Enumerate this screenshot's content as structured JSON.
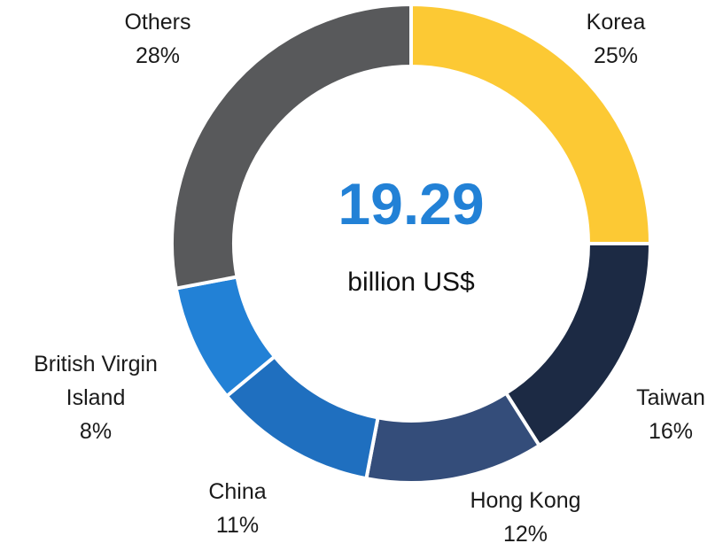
{
  "chart_data": {
    "type": "donut",
    "categories": [
      "Korea",
      "Taiwan",
      "Hong Kong",
      "China",
      "British Virgin Island",
      "Others"
    ],
    "values": [
      25,
      16,
      12,
      11,
      8,
      28
    ],
    "value_labels": [
      "25%",
      "16%",
      "12%",
      "11%",
      "8%",
      "28%"
    ],
    "colors": [
      "#fcc934",
      "#1c2a44",
      "#344d7a",
      "#1f6fbf",
      "#2281d6",
      "#58595b"
    ],
    "center_value": "19.29",
    "center_label": "billion US$"
  }
}
